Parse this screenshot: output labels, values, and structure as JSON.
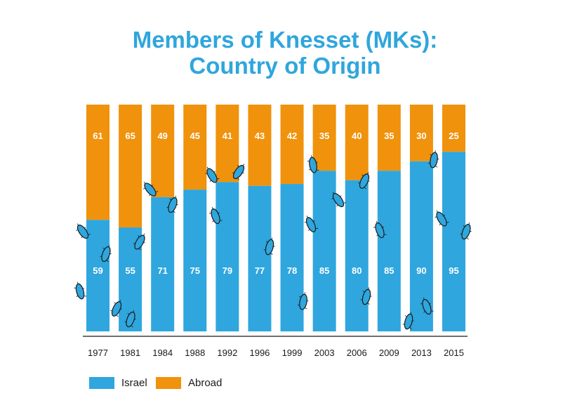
{
  "title": {
    "line1": "Members of Knesset (MKs):",
    "line2": "Country of Origin"
  },
  "colors": {
    "israel": "#2fa6dd",
    "abroad": "#f0920c",
    "axis": "#1a1a1a",
    "title": "#2fa6dd"
  },
  "chart_data": {
    "type": "bar",
    "stacked": true,
    "title": "Members of Knesset (MKs): Country of Origin",
    "xlabel": "",
    "ylabel": "",
    "ylim": [
      0,
      120
    ],
    "grid": false,
    "legend_position": "bottom-left",
    "categories": [
      "1977",
      "1981",
      "1984",
      "1988",
      "1992",
      "1996",
      "1999",
      "2003",
      "2006",
      "2009",
      "2013",
      "2015"
    ],
    "series": [
      {
        "name": "Israel",
        "values": [
          59,
          55,
          71,
          75,
          79,
          77,
          78,
          85,
          80,
          85,
          90,
          95
        ]
      },
      {
        "name": "Abroad",
        "values": [
          61,
          65,
          49,
          45,
          41,
          43,
          42,
          35,
          40,
          35,
          30,
          25
        ]
      }
    ]
  },
  "legend": {
    "israel_label": "Israel",
    "abroad_label": "Abroad"
  }
}
